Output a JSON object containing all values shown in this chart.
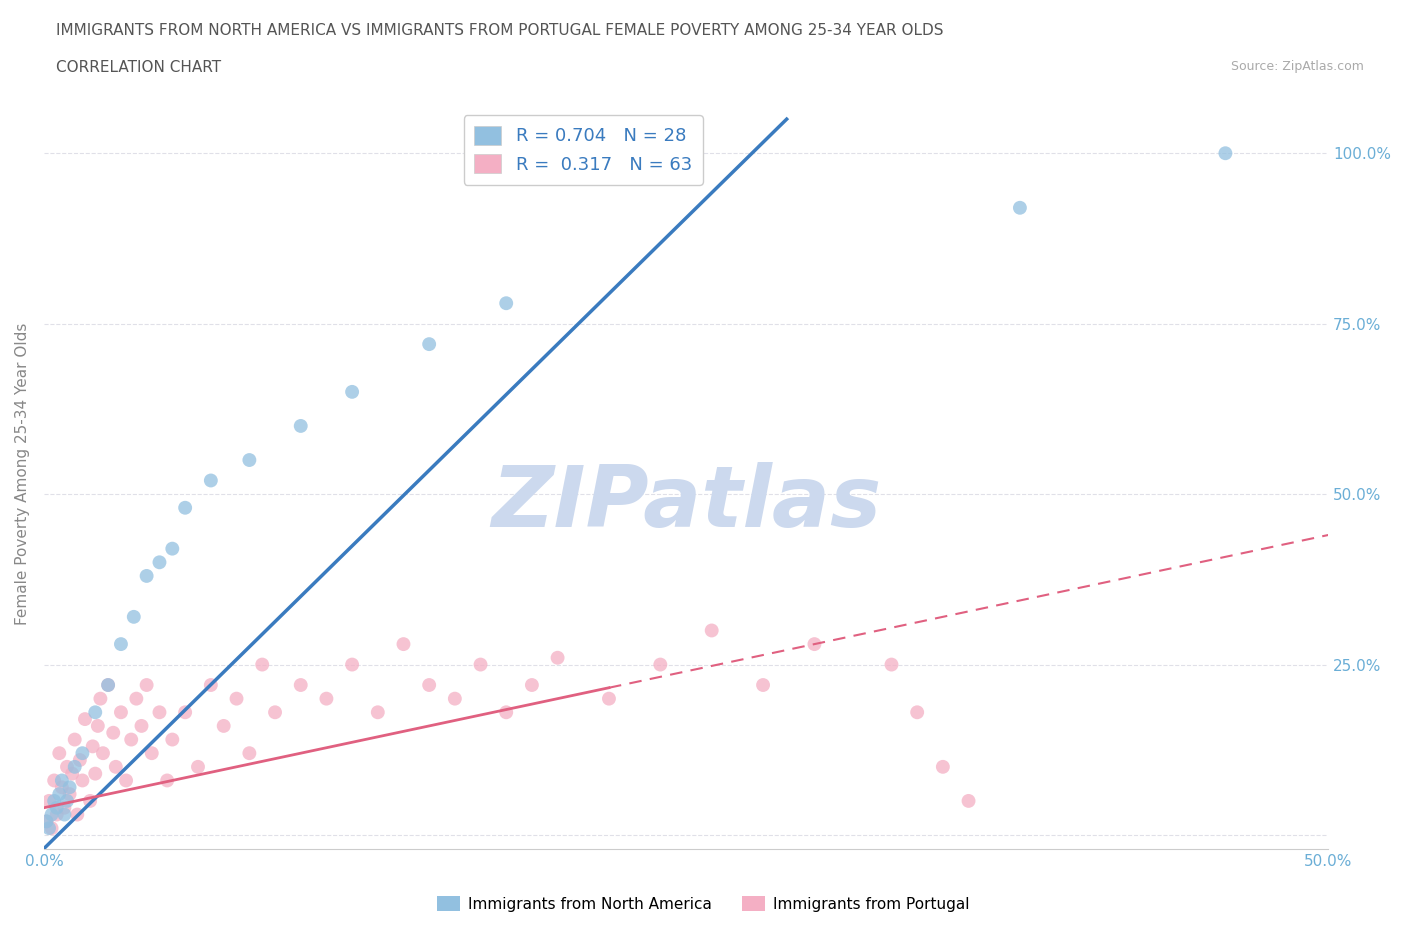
{
  "title_line1": "IMMIGRANTS FROM NORTH AMERICA VS IMMIGRANTS FROM PORTUGAL FEMALE POVERTY AMONG 25-34 YEAR OLDS",
  "title_line2": "CORRELATION CHART",
  "source": "Source: ZipAtlas.com",
  "ylabel": "Female Poverty Among 25-34 Year Olds",
  "xlim": [
    0.0,
    0.5
  ],
  "ylim": [
    -0.02,
    1.08
  ],
  "xticks": [
    0.0,
    0.1,
    0.2,
    0.3,
    0.4,
    0.5
  ],
  "xticklabels": [
    "0.0%",
    "",
    "",
    "",
    "",
    "50.0%"
  ],
  "yticks": [
    0.0,
    0.25,
    0.5,
    0.75,
    1.0
  ],
  "yticklabels": [
    "",
    "25.0%",
    "50.0%",
    "75.0%",
    "100.0%"
  ],
  "watermark": "ZIPatlas",
  "watermark_color": "#ccd9ee",
  "blue_color": "#92c0e0",
  "pink_color": "#f4afc4",
  "trendline_blue_color": "#3a7bbf",
  "trendline_pink_color": "#e06080",
  "grid_color": "#e0e0e8",
  "title_color": "#555555",
  "axis_label_color": "#888888",
  "tick_label_color": "#6baed6",
  "north_america_x": [
    0.001,
    0.002,
    0.003,
    0.004,
    0.005,
    0.006,
    0.007,
    0.008,
    0.009,
    0.01,
    0.012,
    0.015,
    0.02,
    0.025,
    0.03,
    0.035,
    0.04,
    0.045,
    0.05,
    0.055,
    0.065,
    0.08,
    0.1,
    0.12,
    0.15,
    0.18,
    0.38,
    0.46
  ],
  "north_america_y": [
    0.02,
    0.01,
    0.03,
    0.05,
    0.04,
    0.06,
    0.08,
    0.03,
    0.05,
    0.07,
    0.1,
    0.12,
    0.18,
    0.22,
    0.28,
    0.32,
    0.38,
    0.4,
    0.42,
    0.48,
    0.52,
    0.55,
    0.6,
    0.65,
    0.72,
    0.78,
    0.92,
    1.0
  ],
  "portugal_x": [
    0.001,
    0.002,
    0.003,
    0.004,
    0.005,
    0.006,
    0.007,
    0.008,
    0.009,
    0.01,
    0.011,
    0.012,
    0.013,
    0.014,
    0.015,
    0.016,
    0.018,
    0.019,
    0.02,
    0.021,
    0.022,
    0.023,
    0.025,
    0.027,
    0.028,
    0.03,
    0.032,
    0.034,
    0.036,
    0.038,
    0.04,
    0.042,
    0.045,
    0.048,
    0.05,
    0.055,
    0.06,
    0.065,
    0.07,
    0.075,
    0.08,
    0.085,
    0.09,
    0.1,
    0.11,
    0.12,
    0.13,
    0.14,
    0.15,
    0.16,
    0.17,
    0.18,
    0.19,
    0.2,
    0.22,
    0.24,
    0.26,
    0.28,
    0.3,
    0.33,
    0.34,
    0.35,
    0.36
  ],
  "portugal_y": [
    0.02,
    0.05,
    0.01,
    0.08,
    0.03,
    0.12,
    0.07,
    0.04,
    0.1,
    0.06,
    0.09,
    0.14,
    0.03,
    0.11,
    0.08,
    0.17,
    0.05,
    0.13,
    0.09,
    0.16,
    0.2,
    0.12,
    0.22,
    0.15,
    0.1,
    0.18,
    0.08,
    0.14,
    0.2,
    0.16,
    0.22,
    0.12,
    0.18,
    0.08,
    0.14,
    0.18,
    0.1,
    0.22,
    0.16,
    0.2,
    0.12,
    0.25,
    0.18,
    0.22,
    0.2,
    0.25,
    0.18,
    0.28,
    0.22,
    0.2,
    0.25,
    0.18,
    0.22,
    0.26,
    0.2,
    0.25,
    0.3,
    0.22,
    0.28,
    0.25,
    0.18,
    0.1,
    0.05
  ]
}
